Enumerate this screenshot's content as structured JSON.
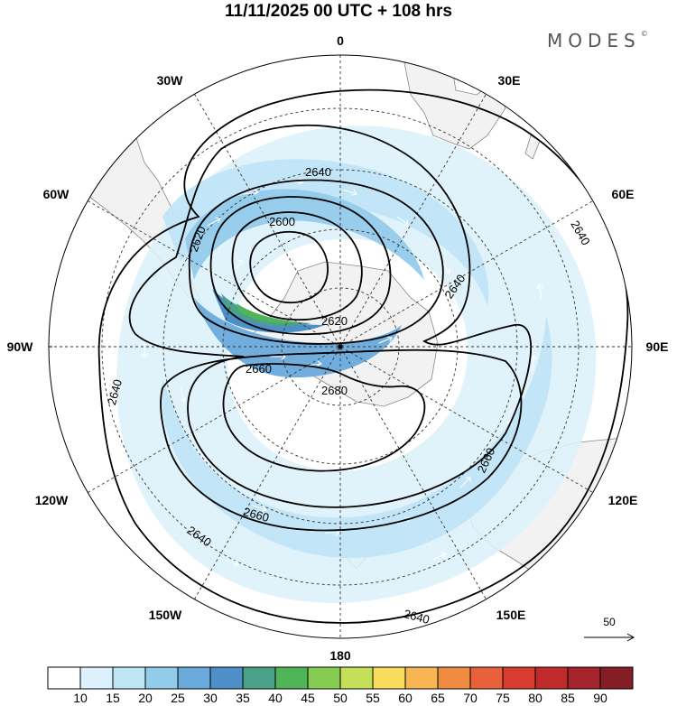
{
  "title": "11/11/2025  00 UTC  + 108 hrs",
  "brand": "MODES",
  "brand_mark": "©",
  "map": {
    "projection": "south polar stereographic",
    "center": "South Pole",
    "longitude_labels": [
      {
        "text": "0"
      },
      {
        "text": "30E"
      },
      {
        "text": "60E"
      },
      {
        "text": "90E"
      },
      {
        "text": "120E"
      },
      {
        "text": "150E"
      },
      {
        "text": "180"
      },
      {
        "text": "150W"
      },
      {
        "text": "120W"
      },
      {
        "text": "90W"
      },
      {
        "text": "60W"
      },
      {
        "text": "30W"
      }
    ],
    "contour_labels": [
      "2600",
      "2620",
      "2620",
      "2640",
      "2640",
      "2640",
      "2640",
      "2640",
      "2640",
      "2660",
      "2660",
      "2660",
      "2680"
    ],
    "reference_vector": "50"
  },
  "colorbar": {
    "labels": [
      "10",
      "15",
      "20",
      "25",
      "30",
      "35",
      "40",
      "45",
      "50",
      "55",
      "60",
      "65",
      "70",
      "75",
      "80",
      "85",
      "90"
    ],
    "colors": [
      "#ffffff",
      "#dcf1fb",
      "#bfe4f6",
      "#93cbeb",
      "#69aadb",
      "#4d8fc6",
      "#4aa088",
      "#4fb558",
      "#86cb52",
      "#c5df59",
      "#f8dc5b",
      "#f7b553",
      "#f08c3f",
      "#e8613a",
      "#d93b2f",
      "#c12a2b",
      "#a5232a",
      "#851d24"
    ]
  }
}
